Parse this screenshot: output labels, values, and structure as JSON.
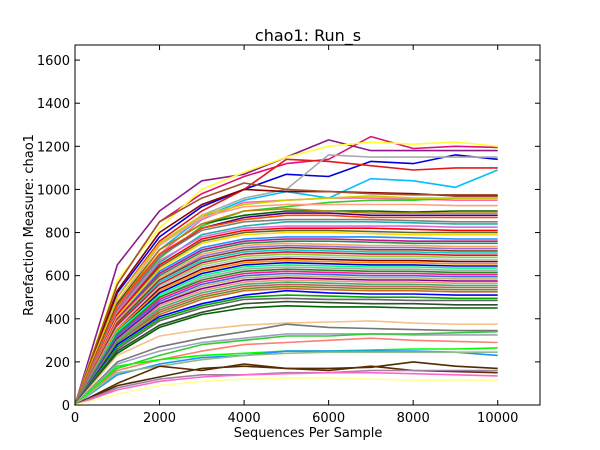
{
  "chart_data": {
    "type": "line",
    "title": "chao1: Run_s",
    "xlabel": "Sequences Per Sample",
    "ylabel": "Rarefaction Measure: chao1",
    "xlim": [
      0,
      11000
    ],
    "ylim": [
      0,
      1670
    ],
    "x_ticks": [
      "0",
      "2000",
      "4000",
      "6000",
      "8000",
      "10000"
    ],
    "y_ticks": [
      "0",
      "200",
      "400",
      "600",
      "800",
      "1000",
      "1200",
      "1400",
      "1600"
    ],
    "grid": false,
    "legend": "none",
    "x": [
      0,
      1000,
      2000,
      3000,
      4000,
      5000,
      6000,
      7000,
      8000,
      9000,
      10000
    ],
    "series": [
      {
        "color": "#8B1A8B",
        "values": [
          0,
          650,
          900,
          1040,
          1070,
          1150,
          1230,
          1180,
          1180,
          1180,
          1180
        ]
      },
      {
        "color": "#E0107A",
        "values": [
          0,
          560,
          850,
          980,
          1060,
          1120,
          1140,
          1245,
          1190,
          1200,
          1195
        ]
      },
      {
        "color": "#FFFF33",
        "values": [
          0,
          580,
          820,
          1000,
          1080,
          1150,
          1200,
          1220,
          1210,
          1220,
          1200
        ]
      },
      {
        "color": "#0000DD",
        "values": [
          0,
          520,
          780,
          920,
          1000,
          1070,
          1060,
          1130,
          1120,
          1160,
          1140
        ]
      },
      {
        "color": "#E31A1C",
        "values": [
          0,
          500,
          760,
          900,
          1000,
          1140,
          1130,
          1110,
          1090,
          1100,
          1100
        ]
      },
      {
        "color": "#00BFFF",
        "values": [
          0,
          470,
          720,
          870,
          950,
          990,
          960,
          1050,
          1040,
          1010,
          1090
        ]
      },
      {
        "color": "#AAAAAA",
        "values": [
          0,
          480,
          740,
          880,
          960,
          1000,
          1160,
          1150,
          1150,
          1150,
          1150
        ]
      },
      {
        "color": "#8B0000",
        "values": [
          0,
          530,
          800,
          930,
          1000,
          990,
          990,
          985,
          980,
          970,
          970
        ]
      },
      {
        "color": "#A0522D",
        "values": [
          0,
          560,
          850,
          960,
          1030,
          1000,
          990,
          980,
          975,
          975,
          975
        ]
      },
      {
        "color": "#FF69B4",
        "values": [
          0,
          450,
          700,
          860,
          940,
          950,
          960,
          960,
          955,
          950,
          950
        ]
      },
      {
        "color": "#32CD32",
        "values": [
          0,
          430,
          680,
          830,
          900,
          920,
          940,
          950,
          950,
          960,
          960
        ]
      },
      {
        "color": "#CCCC00",
        "values": [
          0,
          500,
          750,
          880,
          930,
          950,
          960,
          970,
          960,
          960,
          960
        ]
      },
      {
        "color": "#FFA07A",
        "values": [
          0,
          480,
          740,
          870,
          920,
          930,
          930,
          930,
          930,
          925,
          925
        ]
      },
      {
        "color": "#006400",
        "values": [
          0,
          470,
          720,
          840,
          880,
          900,
          900,
          900,
          895,
          900,
          900
        ]
      },
      {
        "color": "#B8860B",
        "values": [
          0,
          460,
          720,
          840,
          900,
          910,
          900,
          890,
          890,
          890,
          890
        ]
      },
      {
        "color": "#4B0082",
        "values": [
          0,
          440,
          690,
          820,
          870,
          890,
          890,
          880,
          880,
          880,
          880
        ]
      },
      {
        "color": "#FF4500",
        "values": [
          0,
          460,
          700,
          820,
          860,
          880,
          880,
          870,
          870,
          870,
          870
        ]
      },
      {
        "color": "#808080",
        "values": [
          0,
          440,
          690,
          810,
          850,
          860,
          860,
          860,
          855,
          850,
          850
        ]
      },
      {
        "color": "#20B2AA",
        "values": [
          0,
          420,
          660,
          790,
          830,
          850,
          850,
          850,
          845,
          840,
          840
        ]
      },
      {
        "color": "#DA70D6",
        "values": [
          0,
          430,
          670,
          780,
          820,
          830,
          830,
          830,
          830,
          825,
          825
        ]
      },
      {
        "color": "#FF0000",
        "values": [
          0,
          420,
          650,
          770,
          810,
          820,
          820,
          820,
          815,
          810,
          810
        ]
      },
      {
        "color": "#556B2F",
        "values": [
          0,
          410,
          640,
          760,
          800,
          810,
          810,
          805,
          800,
          800,
          800
        ]
      },
      {
        "color": "#FFD700",
        "values": [
          0,
          410,
          630,
          750,
          790,
          800,
          800,
          795,
          790,
          790,
          790
        ]
      },
      {
        "color": "#1E90FF",
        "values": [
          0,
          400,
          620,
          730,
          770,
          780,
          780,
          780,
          775,
          770,
          770
        ]
      },
      {
        "color": "#C71585",
        "values": [
          0,
          400,
          610,
          720,
          760,
          770,
          770,
          765,
          760,
          760,
          760
        ]
      },
      {
        "color": "#2E8B57",
        "values": [
          0,
          390,
          600,
          710,
          750,
          760,
          760,
          755,
          750,
          750,
          750
        ]
      },
      {
        "color": "#F4A460",
        "values": [
          0,
          390,
          590,
          700,
          740,
          750,
          745,
          740,
          740,
          735,
          735
        ]
      },
      {
        "color": "#9370DB",
        "values": [
          0,
          380,
          580,
          690,
          730,
          740,
          735,
          730,
          730,
          725,
          725
        ]
      },
      {
        "color": "#8B4513",
        "values": [
          0,
          380,
          580,
          680,
          720,
          730,
          725,
          720,
          720,
          715,
          715
        ]
      },
      {
        "color": "#00CED1",
        "values": [
          0,
          370,
          570,
          670,
          710,
          720,
          715,
          710,
          710,
          705,
          705
        ]
      },
      {
        "color": "#DC143C",
        "values": [
          0,
          370,
          560,
          660,
          700,
          710,
          705,
          700,
          700,
          695,
          695
        ]
      },
      {
        "color": "#9ACD32",
        "values": [
          0,
          360,
          550,
          650,
          690,
          700,
          695,
          690,
          690,
          685,
          685
        ]
      },
      {
        "color": "#B0C4DE",
        "values": [
          0,
          360,
          550,
          640,
          680,
          690,
          685,
          680,
          680,
          675,
          675
        ]
      },
      {
        "color": "#800000",
        "values": [
          0,
          350,
          540,
          630,
          670,
          680,
          675,
          670,
          670,
          665,
          665
        ]
      },
      {
        "color": "#FF8C00",
        "values": [
          0,
          350,
          530,
          620,
          660,
          670,
          665,
          660,
          660,
          655,
          655
        ]
      },
      {
        "color": "#0000CD",
        "values": [
          0,
          340,
          520,
          610,
          650,
          660,
          655,
          650,
          650,
          645,
          645
        ]
      },
      {
        "color": "#00FF7F",
        "values": [
          0,
          340,
          510,
          600,
          640,
          650,
          645,
          640,
          640,
          635,
          635
        ]
      },
      {
        "color": "#A9A9A9",
        "values": [
          0,
          330,
          500,
          590,
          630,
          640,
          635,
          630,
          630,
          625,
          625
        ]
      },
      {
        "color": "#228B22",
        "values": [
          0,
          330,
          500,
          580,
          620,
          630,
          625,
          620,
          620,
          615,
          615
        ]
      },
      {
        "color": "#FF1493",
        "values": [
          0,
          320,
          490,
          570,
          610,
          620,
          615,
          610,
          610,
          605,
          605
        ]
      },
      {
        "color": "#4169E1",
        "values": [
          0,
          320,
          480,
          560,
          600,
          610,
          605,
          600,
          600,
          595,
          595
        ]
      },
      {
        "color": "#BDB76B",
        "values": [
          0,
          310,
          470,
          550,
          590,
          600,
          595,
          590,
          590,
          585,
          585
        ]
      },
      {
        "color": "#8B008B",
        "values": [
          0,
          310,
          470,
          540,
          580,
          590,
          585,
          580,
          580,
          575,
          575
        ]
      },
      {
        "color": "#E9967A",
        "values": [
          0,
          300,
          460,
          530,
          570,
          580,
          575,
          570,
          570,
          565,
          565
        ]
      },
      {
        "color": "#3CB371",
        "values": [
          0,
          300,
          450,
          520,
          560,
          570,
          565,
          560,
          560,
          555,
          555
        ]
      },
      {
        "color": "#CD5C5C",
        "values": [
          0,
          290,
          440,
          510,
          550,
          560,
          555,
          550,
          550,
          545,
          545
        ]
      },
      {
        "color": "#6B8E23",
        "values": [
          0,
          290,
          430,
          500,
          540,
          550,
          545,
          540,
          540,
          535,
          535
        ]
      },
      {
        "color": "#D2691E",
        "values": [
          0,
          280,
          420,
          490,
          530,
          540,
          535,
          530,
          530,
          525,
          525
        ]
      },
      {
        "color": "#0000FF",
        "values": [
          0,
          280,
          410,
          470,
          510,
          530,
          520,
          515,
          515,
          510,
          510
        ]
      },
      {
        "color": "#00AA00",
        "values": [
          0,
          270,
          400,
          460,
          500,
          510,
          505,
          500,
          500,
          495,
          495
        ]
      },
      {
        "color": "#666666",
        "values": [
          0,
          260,
          390,
          450,
          490,
          495,
          490,
          490,
          485,
          485,
          485
        ]
      },
      {
        "color": "#2F4F2F",
        "values": [
          0,
          250,
          370,
          430,
          470,
          480,
          475,
          470,
          470,
          465,
          465
        ]
      },
      {
        "color": "#006400",
        "values": [
          0,
          240,
          360,
          420,
          450,
          460,
          455,
          455,
          450,
          450,
          450
        ]
      },
      {
        "color": "#F4C28A",
        "values": [
          0,
          230,
          320,
          350,
          370,
          380,
          385,
          390,
          380,
          375,
          375
        ]
      },
      {
        "color": "#777777",
        "values": [
          0,
          200,
          270,
          310,
          340,
          375,
          360,
          355,
          350,
          345,
          345
        ]
      },
      {
        "color": "#A0A0C0",
        "values": [
          0,
          190,
          250,
          290,
          310,
          330,
          330,
          330,
          325,
          325,
          325
        ]
      },
      {
        "color": "#32CD32",
        "values": [
          0,
          170,
          230,
          280,
          300,
          320,
          320,
          330,
          330,
          335,
          340
        ]
      },
      {
        "color": "#FA8072",
        "values": [
          0,
          160,
          210,
          250,
          280,
          290,
          300,
          310,
          300,
          295,
          290
        ]
      },
      {
        "color": "#00FF00",
        "values": [
          0,
          180,
          210,
          230,
          240,
          250,
          250,
          255,
          260,
          260,
          265
        ]
      },
      {
        "color": "#1E90FF",
        "values": [
          0,
          140,
          190,
          220,
          230,
          250,
          250,
          250,
          250,
          245,
          230
        ]
      },
      {
        "color": "#8FBC8F",
        "values": [
          0,
          150,
          180,
          210,
          230,
          240,
          245,
          245,
          245,
          245,
          245
        ]
      },
      {
        "color": "#4B2E00",
        "values": [
          0,
          90,
          130,
          170,
          180,
          170,
          170,
          175,
          200,
          180,
          170
        ]
      },
      {
        "color": "#5B2A00",
        "values": [
          0,
          100,
          180,
          160,
          190,
          170,
          160,
          180,
          160,
          155,
          150
        ]
      },
      {
        "color": "#A080A0",
        "values": [
          0,
          80,
          120,
          140,
          140,
          150,
          150,
          160,
          160,
          160,
          160
        ]
      },
      {
        "color": "#FF66CC",
        "values": [
          0,
          70,
          110,
          130,
          140,
          145,
          150,
          150,
          145,
          140,
          135
        ]
      },
      {
        "color": "#FFFF99",
        "values": [
          0,
          50,
          90,
          110,
          120,
          125,
          125,
          120,
          115,
          115,
          115
        ]
      }
    ]
  }
}
